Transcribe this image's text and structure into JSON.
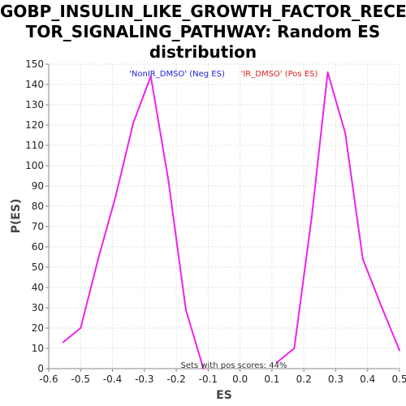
{
  "chart_data": {
    "type": "line",
    "title_lines": [
      "GOBP_INSULIN_LIKE_GROWTH_FACTOR_RECEP",
      "TOR_SIGNALING_PATHWAY: Random ES",
      "distribution"
    ],
    "xlabel": "ES",
    "ylabel": "P(ES)",
    "xlim": [
      -0.6,
      0.5
    ],
    "ylim": [
      0,
      150
    ],
    "xticks": [
      "-0.6",
      "-0.5",
      "-0.4",
      "-0.3",
      "-0.2",
      "-0.1",
      "0.0",
      "0.1",
      "0.2",
      "0.3",
      "0.4",
      "0.5"
    ],
    "yticks": [
      "0",
      "10",
      "20",
      "30",
      "40",
      "50",
      "60",
      "70",
      "80",
      "90",
      "100",
      "110",
      "120",
      "130",
      "140",
      "150"
    ],
    "grid": true,
    "series": [
      {
        "color": "#ee22ee",
        "segments": [
          {
            "x": [
              -0.555,
              -0.5,
              -0.445,
              -0.39,
              -0.335,
              -0.28,
              -0.225,
              -0.17,
              -0.115
            ],
            "y": [
              13,
              20,
              54,
              85,
              121,
              144,
              93,
              29,
              0
            ]
          },
          {
            "x": [
              0.115,
              0.17,
              0.225,
              0.275,
              0.33,
              0.385,
              0.44,
              0.5
            ],
            "y": [
              3,
              10,
              75,
              146,
              116,
              54,
              32,
              9
            ]
          }
        ]
      }
    ],
    "annotations": {
      "neg": {
        "text": "'NonIR_DMSO' (Neg ES)",
        "color": "#2222dd"
      },
      "pos": {
        "text": "'IR_DMSO' (Pos ES)",
        "color": "#dd2222"
      },
      "footer": {
        "text": "Sets with pos scores: 44%",
        "color": "#333333"
      }
    }
  }
}
